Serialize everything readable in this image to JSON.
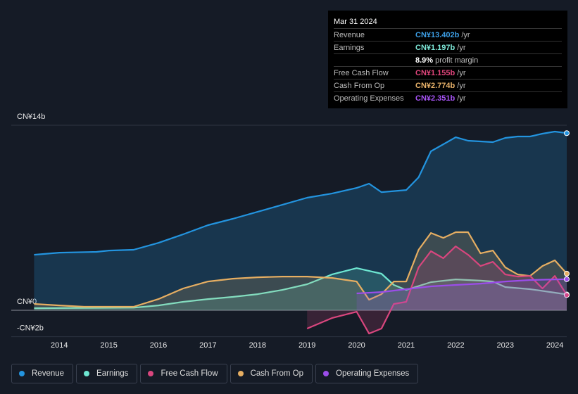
{
  "chart_data": {
    "type": "area",
    "xlim": [
      2013.03,
      2024.24
    ],
    "xticks": [
      2014,
      2015,
      2016,
      2017,
      2018,
      2019,
      2020,
      2021,
      2022,
      2023,
      2024
    ],
    "ylim": [
      -2,
      14
    ],
    "yticks": [
      {
        "value": -2,
        "label": "-CN¥2b"
      },
      {
        "value": 0,
        "label": "CN¥0"
      },
      {
        "value": 14,
        "label": "CN¥14b"
      }
    ],
    "grid": true,
    "series": [
      {
        "name": "Revenue",
        "color": "#2394df",
        "x": [
          2013.49,
          2014,
          2014.75,
          2015,
          2015.5,
          2016,
          2016.5,
          2017,
          2017.5,
          2018,
          2018.5,
          2019,
          2019.5,
          2020,
          2020.25,
          2020.5,
          2021,
          2021.25,
          2021.5,
          2022,
          2022.25,
          2022.75,
          2023,
          2023.25,
          2023.5,
          2023.75,
          2024,
          2024.24
        ],
        "values": [
          4.2,
          4.36,
          4.42,
          4.52,
          4.58,
          5.1,
          5.75,
          6.44,
          6.92,
          7.45,
          7.98,
          8.52,
          8.83,
          9.26,
          9.58,
          8.94,
          9.1,
          10.06,
          12.03,
          13.09,
          12.83,
          12.72,
          13.04,
          13.15,
          13.15,
          13.36,
          13.52,
          13.402
        ]
      },
      {
        "name": "Earnings",
        "color": "#6ee7d2",
        "x": [
          2013.49,
          2015.5,
          2016,
          2016.5,
          2017,
          2017.5,
          2018,
          2018.5,
          2019,
          2019.5,
          2020,
          2020.5,
          2020.75,
          2021,
          2021.5,
          2022,
          2022.5,
          2022.75,
          2023,
          2023.5,
          2024,
          2024.24
        ],
        "values": [
          0.16,
          0.2,
          0.37,
          0.64,
          0.85,
          1.01,
          1.22,
          1.54,
          1.97,
          2.71,
          3.19,
          2.77,
          1.92,
          1.54,
          2.13,
          2.34,
          2.24,
          2.18,
          1.76,
          1.6,
          1.33,
          1.197
        ]
      },
      {
        "name": "Free Cash Flow",
        "color": "#d9467e",
        "x": [
          2019,
          2019.5,
          2020,
          2020.25,
          2020.5,
          2020.75,
          2021,
          2021.25,
          2021.5,
          2021.75,
          2022,
          2022.25,
          2022.5,
          2022.75,
          2023,
          2023.25,
          2023.5,
          2023.75,
          2024,
          2024.24
        ],
        "values": [
          -1.38,
          -0.59,
          -0.11,
          -1.76,
          -1.38,
          0.48,
          0.64,
          3.25,
          4.47,
          3.94,
          4.84,
          4.2,
          3.35,
          3.67,
          2.71,
          2.55,
          2.6,
          1.65,
          2.6,
          1.155
        ]
      },
      {
        "name": "Cash From Op",
        "color": "#e6ae62",
        "x": [
          2013.49,
          2014,
          2014.5,
          2015,
          2015.5,
          2016,
          2016.5,
          2017,
          2017.5,
          2018,
          2018.5,
          2019,
          2019.5,
          2020,
          2020.25,
          2020.5,
          2020.75,
          2021,
          2021.25,
          2021.5,
          2021.75,
          2022,
          2022.25,
          2022.5,
          2022.75,
          2023,
          2023.25,
          2023.5,
          2023.75,
          2024,
          2024.24
        ],
        "values": [
          0.48,
          0.37,
          0.27,
          0.27,
          0.27,
          0.85,
          1.65,
          2.18,
          2.39,
          2.5,
          2.55,
          2.55,
          2.45,
          2.18,
          0.8,
          1.22,
          2.18,
          2.18,
          4.58,
          5.85,
          5.48,
          5.91,
          5.91,
          4.31,
          4.52,
          3.25,
          2.71,
          2.6,
          3.35,
          3.78,
          2.774
        ]
      },
      {
        "name": "Operating Expenses",
        "color": "#9b4dea",
        "x": [
          2020,
          2020.5,
          2021,
          2021.5,
          2022,
          2022.5,
          2023,
          2023.5,
          2024,
          2024.24
        ],
        "values": [
          1.28,
          1.38,
          1.6,
          1.81,
          1.92,
          2.02,
          2.18,
          2.29,
          2.34,
          2.351
        ]
      }
    ],
    "tooltip": {
      "date": "Mar 31 2024",
      "rows": [
        {
          "label": "Revenue",
          "value": "CN¥13.402b",
          "unit": "/yr",
          "color": "#3d9fe6"
        },
        {
          "label": "Earnings",
          "value": "CN¥1.197b",
          "unit": "/yr",
          "color": "#7ee8d8"
        },
        {
          "value": "8.9%",
          "unit": "profit margin",
          "color": "#ffffff"
        },
        {
          "label": "Free Cash Flow",
          "value": "CN¥1.155b",
          "unit": "/yr",
          "color": "#e0457b"
        },
        {
          "label": "Cash From Op",
          "value": "CN¥2.774b",
          "unit": "/yr",
          "color": "#e8b26a"
        },
        {
          "label": "Operating Expenses",
          "value": "CN¥2.351b",
          "unit": "/yr",
          "color": "#a855f7"
        }
      ]
    }
  }
}
